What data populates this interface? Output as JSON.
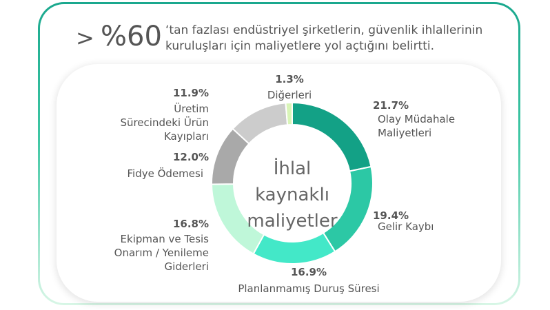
{
  "headline": {
    "prefix": ">",
    "percent": "%60",
    "sentence": "‘tan fazlası endüstriyel şirketlerin, güvenlik ihlallerinin kuruluşları için maliyetlere yol açtığını belirtti."
  },
  "chart_data": {
    "type": "pie",
    "donut": true,
    "center_label": [
      "İhlal",
      "kaynaklı",
      "maliyetler"
    ],
    "slices": [
      {
        "value": 21.7,
        "display": "21.7%",
        "label": [
          "Olay Müdahale",
          "Maliyetleri"
        ],
        "color": "#13a186"
      },
      {
        "value": 19.4,
        "display": "19.4%",
        "label": [
          "Gelir Kaybı"
        ],
        "color": "#2cc8a5"
      },
      {
        "value": 16.9,
        "display": "16.9%",
        "label": [
          "Planlanmamış Duruş Süresi"
        ],
        "color": "#43e8c8"
      },
      {
        "value": 16.8,
        "display": "16.8%",
        "label": [
          "Ekipman ve Tesis",
          "Onarım / Yenileme",
          "Giderleri"
        ],
        "color": "#bff7d9"
      },
      {
        "value": 12.0,
        "display": "12.0%",
        "label": [
          "Fidye Ödemesi"
        ],
        "color": "#a9a9a9"
      },
      {
        "value": 11.9,
        "display": "11.9%",
        "label": [
          "Üretim",
          "Sürecindeki Ürün",
          "Kayıpları"
        ],
        "color": "#cccccc"
      },
      {
        "value": 1.3,
        "display": "1.3%",
        "label": [
          "Diğerleri"
        ],
        "color": "#d9f5b8"
      }
    ]
  }
}
